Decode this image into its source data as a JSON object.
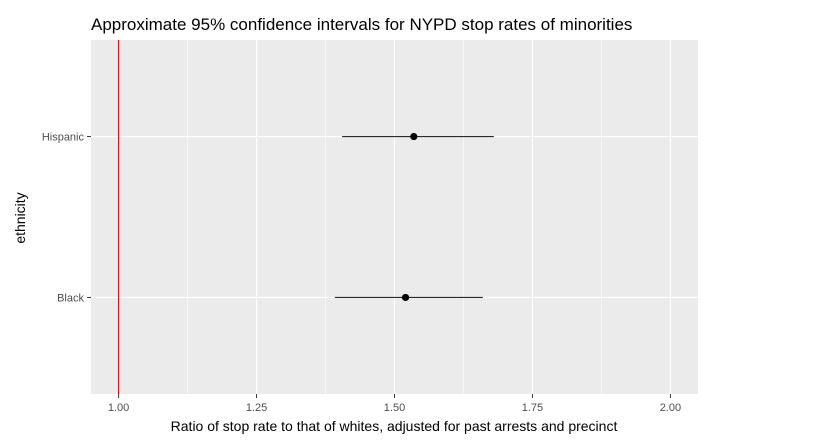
{
  "chart_data": {
    "type": "pointrange",
    "title": "Approximate 95% confidence intervals for NYPD stop rates of minorities",
    "xlabel": "Ratio of stop rate to that of whites, adjusted for past arrests and precinct",
    "ylabel": "ethnicity",
    "xlim": [
      0.95,
      2.05
    ],
    "x_ticks": [
      1.0,
      1.25,
      1.5,
      1.75,
      2.0
    ],
    "x_tick_labels": [
      "1.00",
      "1.25",
      "1.50",
      "1.75",
      "2.00"
    ],
    "categories": [
      "Hispanic",
      "Black"
    ],
    "points": [
      {
        "category": "Hispanic",
        "estimate": 1.535,
        "lower": 1.405,
        "upper": 1.68
      },
      {
        "category": "Black",
        "estimate": 1.52,
        "lower": 1.392,
        "upper": 1.66
      }
    ],
    "reference_line": {
      "x": 1.0,
      "color": "#cc0000"
    },
    "grid": true,
    "panel_background": "#ebebeb",
    "point_color": "#000000"
  }
}
